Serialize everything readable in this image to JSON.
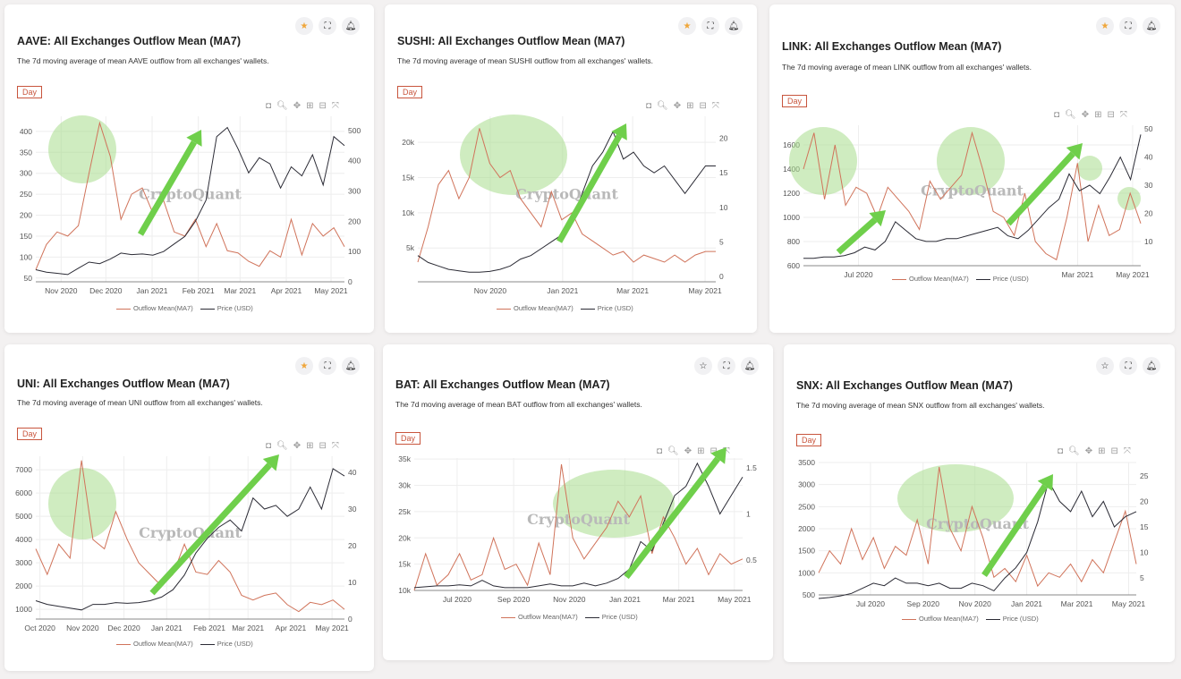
{
  "colors": {
    "outflow": "#d0735a",
    "price": "#2b2b35",
    "accent": "#c8553d",
    "star": "#f0a63a",
    "highlight": "#a8dc8c",
    "arrow": "#6fcf4b"
  },
  "common": {
    "day_label": "Day",
    "legend_outflow": "Outflow Mean(MA7)",
    "legend_price": "Price (USD)",
    "watermark": "CryptoQuant",
    "modebar": [
      "camera-icon",
      "zoom-icon",
      "pan-icon",
      "zoom-in-icon",
      "zoom-out-icon",
      "autoscale-icon"
    ]
  },
  "chart_data": [
    {
      "type": "line",
      "asset": "AAVE",
      "favorited": true,
      "title": "AAVE: All Exchanges Outflow Mean (MA7)",
      "description": "The 7d moving average of mean AAVE outflow from all exchanges' wallets.",
      "x_range": [
        "2020-10-15",
        "2021-05-10"
      ],
      "x_ticks": [
        [
          "2020-11-01",
          "Nov 2020"
        ],
        [
          "2020-12-01",
          "Dec 2020"
        ],
        [
          "2021-01-01",
          "Jan 2021"
        ],
        [
          "2021-02-01",
          "Feb 2021"
        ],
        [
          "2021-03-01",
          "Mar 2021"
        ],
        [
          "2021-04-01",
          "Apr 2021"
        ],
        [
          "2021-05-01",
          "May 2021"
        ]
      ],
      "ylim_left": [
        41,
        436
      ],
      "yticks_left": [
        [
          "50",
          "50"
        ],
        [
          "100",
          "100"
        ],
        [
          "150",
          "150"
        ],
        [
          "200",
          "200"
        ],
        [
          "250",
          "250"
        ],
        [
          "300",
          "300"
        ],
        [
          "350",
          "350"
        ],
        [
          "400",
          "400"
        ]
      ],
      "ylim_right": [
        0,
        547
      ],
      "yticks_right": [
        [
          "0",
          "0"
        ],
        [
          "100",
          "100"
        ],
        [
          "200",
          "200"
        ],
        [
          "300",
          "300"
        ],
        [
          "400",
          "400"
        ],
        [
          "500",
          "500"
        ]
      ],
      "series": [
        {
          "name": "Outflow Mean(MA7)",
          "axis": "left",
          "values": [
            70,
            130,
            160,
            150,
            175,
            300,
            420,
            340,
            190,
            250,
            265,
            205,
            235,
            160,
            150,
            190,
            125,
            180,
            115,
            110,
            90,
            78,
            115,
            100,
            190,
            105,
            180,
            150,
            170,
            125
          ]
        },
        {
          "name": "Price (USD)",
          "axis": "right",
          "values": [
            40,
            32,
            28,
            24,
            45,
            65,
            60,
            75,
            95,
            90,
            92,
            88,
            100,
            125,
            150,
            200,
            270,
            480,
            510,
            440,
            360,
            410,
            390,
            310,
            380,
            350,
            420,
            320,
            480,
            450
          ]
        }
      ]
    },
    {
      "type": "line",
      "asset": "SUSHI",
      "favorited": true,
      "title": "SUSHI: All Exchanges Outflow Mean (MA7)",
      "description": "The 7d moving average of mean SUSHI outflow from all exchanges' wallets.",
      "x_range": [
        "2020-09-01",
        "2021-05-10"
      ],
      "x_ticks": [
        [
          "2020-11-01",
          "Nov 2020"
        ],
        [
          "2021-01-01",
          "Jan 2021"
        ],
        [
          "2021-03-01",
          "Mar 2021"
        ],
        [
          "2021-05-01",
          "May 2021"
        ]
      ],
      "ylim_left": [
        200,
        23700
      ],
      "yticks_left": [
        [
          "5000",
          "5k"
        ],
        [
          "10000",
          "10k"
        ],
        [
          "15000",
          "15k"
        ],
        [
          "20000",
          "20k"
        ]
      ],
      "ylim_right": [
        -0.8,
        23.2
      ],
      "yticks_right": [
        [
          "0",
          "0"
        ],
        [
          "5",
          "5"
        ],
        [
          "10",
          "10"
        ],
        [
          "15",
          "15"
        ],
        [
          "20",
          "20"
        ]
      ],
      "series": [
        {
          "name": "Outflow Mean(MA7)",
          "axis": "left",
          "values": [
            3000,
            8000,
            14000,
            16000,
            12000,
            15000,
            22000,
            17000,
            15000,
            16000,
            12000,
            10000,
            8000,
            13000,
            9000,
            10000,
            7000,
            6000,
            5000,
            4000,
            4500,
            3000,
            4000,
            3500,
            3000,
            4000,
            3000,
            4000,
            4500,
            4500
          ]
        },
        {
          "name": "Price (USD)",
          "axis": "right",
          "values": [
            3,
            2,
            1.5,
            1,
            0.8,
            0.6,
            0.6,
            0.7,
            1,
            1.5,
            2.5,
            3,
            4,
            5,
            6,
            8,
            12,
            16,
            18,
            21,
            17,
            18,
            16,
            15,
            16,
            14,
            12,
            14,
            16,
            16
          ]
        }
      ]
    },
    {
      "type": "line",
      "asset": "LINK",
      "favorited": true,
      "title": "LINK: All Exchanges Outflow Mean (MA7)",
      "description": "The 7d moving average of mean LINK outflow from all exchanges' wallets.",
      "x_range": [
        "2020-05-01",
        "2021-05-10"
      ],
      "x_ticks": [
        [
          "2020-07-01",
          "Jul 2020"
        ],
        [
          "2021-03-01",
          "Mar 2021"
        ],
        [
          "2021-05-01",
          "May 2021"
        ]
      ],
      "ylim_left": [
        600,
        1763
      ],
      "yticks_left": [
        [
          "600",
          "600"
        ],
        [
          "800",
          "800"
        ],
        [
          "1000",
          "1000"
        ],
        [
          "1200",
          "1200"
        ],
        [
          "1400",
          "1400"
        ],
        [
          "1600",
          "1600"
        ]
      ],
      "ylim_right": [
        1.4,
        51.3
      ],
      "yticks_right": [
        [
          "10",
          "10"
        ],
        [
          "20",
          "20"
        ],
        [
          "30",
          "30"
        ],
        [
          "40",
          "40"
        ],
        [
          "50",
          "50"
        ]
      ],
      "series": [
        {
          "name": "Outflow Mean(MA7)",
          "axis": "left",
          "values": [
            1400,
            1700,
            1150,
            1600,
            1100,
            1250,
            1200,
            1000,
            1250,
            1150,
            1050,
            900,
            1300,
            1150,
            1250,
            1350,
            1700,
            1400,
            1050,
            1000,
            850,
            1200,
            800,
            700,
            650,
            1000,
            1450,
            800,
            1100,
            850,
            900,
            1200,
            950
          ]
        },
        {
          "name": "Price (USD)",
          "axis": "right",
          "values": [
            4,
            4,
            4.5,
            4.5,
            5,
            6,
            8,
            7,
            10,
            17,
            14,
            11,
            10,
            10,
            11,
            11,
            12,
            13,
            14,
            15,
            12,
            11,
            14,
            18,
            22,
            25,
            34,
            28,
            30,
            27,
            33,
            40,
            32,
            48
          ]
        }
      ]
    },
    {
      "type": "line",
      "asset": "UNI",
      "favorited": true,
      "title": "UNI: All Exchanges Outflow Mean (MA7)",
      "description": "The 7d moving average of mean UNI outflow from all exchanges' wallets.",
      "x_range": [
        "2020-09-28",
        "2021-05-10"
      ],
      "x_ticks": [
        [
          "2020-10-01",
          "Oct 2020"
        ],
        [
          "2020-11-01",
          "Nov 2020"
        ],
        [
          "2020-12-01",
          "Dec 2020"
        ],
        [
          "2021-01-01",
          "Jan 2021"
        ],
        [
          "2021-02-01",
          "Feb 2021"
        ],
        [
          "2021-03-01",
          "Mar 2021"
        ],
        [
          "2021-04-01",
          "Apr 2021"
        ],
        [
          "2021-05-01",
          "May 2021"
        ]
      ],
      "ylim_left": [
        580,
        7580
      ],
      "yticks_left": [
        [
          "1000",
          "1000"
        ],
        [
          "2000",
          "2000"
        ],
        [
          "3000",
          "3000"
        ],
        [
          "4000",
          "4000"
        ],
        [
          "5000",
          "5000"
        ],
        [
          "6000",
          "6000"
        ],
        [
          "7000",
          "7000"
        ]
      ],
      "ylim_right": [
        0,
        44.4
      ],
      "yticks_right": [
        [
          "0",
          "0"
        ],
        [
          "10",
          "10"
        ],
        [
          "20",
          "20"
        ],
        [
          "30",
          "30"
        ],
        [
          "40",
          "40"
        ]
      ],
      "series": [
        {
          "name": "Outflow Mean(MA7)",
          "axis": "left",
          "values": [
            3600,
            2500,
            3800,
            3200,
            7400,
            4000,
            3600,
            5200,
            4000,
            3000,
            2500,
            2000,
            2500,
            3800,
            2600,
            2500,
            3100,
            2600,
            1600,
            1400,
            1600,
            1700,
            1200,
            900,
            1300,
            1200,
            1400,
            1000
          ]
        },
        {
          "name": "Price (USD)",
          "axis": "right",
          "values": [
            5,
            4,
            3.5,
            3,
            2.5,
            4,
            4,
            4.5,
            4.3,
            4.5,
            5,
            6,
            8,
            12,
            18,
            22,
            25,
            27,
            24,
            33,
            30,
            31,
            28,
            30,
            36,
            30,
            41,
            39
          ]
        }
      ]
    },
    {
      "type": "line",
      "asset": "BAT",
      "favorited": false,
      "title": "BAT: All Exchanges Outflow Mean (MA7)",
      "description": "The 7d moving average of mean BAT outflow from all exchanges' wallets.",
      "x_range": [
        "2020-05-15",
        "2021-05-10"
      ],
      "x_ticks": [
        [
          "2020-07-01",
          "Jul 2020"
        ],
        [
          "2020-09-01",
          "Sep 2020"
        ],
        [
          "2020-11-01",
          "Nov 2020"
        ],
        [
          "2021-01-01",
          "Jan 2021"
        ],
        [
          "2021-03-01",
          "Mar 2021"
        ],
        [
          "2021-05-01",
          "May 2021"
        ]
      ],
      "ylim_left": [
        10000,
        35200
      ],
      "yticks_left": [
        [
          "10000",
          "10k"
        ],
        [
          "15000",
          "15k"
        ],
        [
          "20000",
          "20k"
        ],
        [
          "25000",
          "25k"
        ],
        [
          "30000",
          "30k"
        ],
        [
          "35000",
          "35k"
        ]
      ],
      "ylim_right": [
        0.17,
        1.607
      ],
      "yticks_right": [
        [
          "0.5",
          "0.5"
        ],
        [
          "1",
          "1"
        ],
        [
          "1.5",
          "1.5"
        ]
      ],
      "series": [
        {
          "name": "Outflow Mean(MA7)",
          "axis": "left",
          "values": [
            10000,
            17000,
            11000,
            13000,
            17000,
            12000,
            13000,
            20000,
            14000,
            15000,
            11000,
            19000,
            13000,
            34000,
            20000,
            16000,
            19000,
            22000,
            27000,
            24000,
            28000,
            17000,
            24000,
            20000,
            15000,
            18000,
            13000,
            17000,
            15000,
            16000
          ]
        },
        {
          "name": "Price (USD)",
          "axis": "right",
          "values": [
            0.2,
            0.21,
            0.22,
            0.22,
            0.23,
            0.22,
            0.28,
            0.22,
            0.2,
            0.2,
            0.2,
            0.22,
            0.24,
            0.22,
            0.22,
            0.25,
            0.22,
            0.25,
            0.3,
            0.4,
            0.7,
            0.6,
            0.9,
            1.2,
            1.3,
            1.55,
            1.3,
            1.0,
            1.2,
            1.4
          ]
        }
      ]
    },
    {
      "type": "line",
      "asset": "SNX",
      "favorited": false,
      "title": "SNX: All Exchanges Outflow Mean (MA7)",
      "description": "The 7d moving average of mean SNX outflow from all exchanges' wallets.",
      "x_range": [
        "2020-05-01",
        "2021-05-10"
      ],
      "x_ticks": [
        [
          "2020-07-01",
          "Jul 2020"
        ],
        [
          "2020-09-01",
          "Sep 2020"
        ],
        [
          "2020-11-01",
          "Nov 2020"
        ],
        [
          "2021-01-01",
          "Jan 2021"
        ],
        [
          "2021-03-01",
          "Mar 2021"
        ],
        [
          "2021-05-01",
          "May 2021"
        ]
      ],
      "ylim_left": [
        500,
        3500
      ],
      "yticks_left": [
        [
          "500",
          "500"
        ],
        [
          "1000",
          "1000"
        ],
        [
          "1500",
          "1500"
        ],
        [
          "2000",
          "2000"
        ],
        [
          "2500",
          "2500"
        ],
        [
          "3000",
          "3000"
        ],
        [
          "3500",
          "3500"
        ]
      ],
      "ylim_right": [
        1.7,
        27.6
      ],
      "yticks_right": [
        [
          "5",
          "5"
        ],
        [
          "10",
          "10"
        ],
        [
          "15",
          "15"
        ],
        [
          "20",
          "20"
        ],
        [
          "25",
          "25"
        ]
      ],
      "series": [
        {
          "name": "Outflow Mean(MA7)",
          "axis": "left",
          "values": [
            1000,
            1500,
            1200,
            2000,
            1300,
            1800,
            1100,
            1600,
            1400,
            2200,
            1200,
            3400,
            2000,
            1500,
            2500,
            1800,
            900,
            1100,
            800,
            1400,
            700,
            1000,
            900,
            1200,
            800,
            1300,
            1000,
            1700,
            2400,
            1200
          ]
        },
        {
          "name": "Price (USD)",
          "axis": "right",
          "values": [
            1,
            1.2,
            1.5,
            2,
            3,
            4,
            3.5,
            5,
            4,
            4,
            3.5,
            4,
            3,
            3,
            4,
            3.5,
            2.5,
            5,
            7,
            10,
            16,
            24,
            20,
            18,
            22,
            17,
            20,
            15,
            17,
            18
          ]
        }
      ]
    }
  ]
}
